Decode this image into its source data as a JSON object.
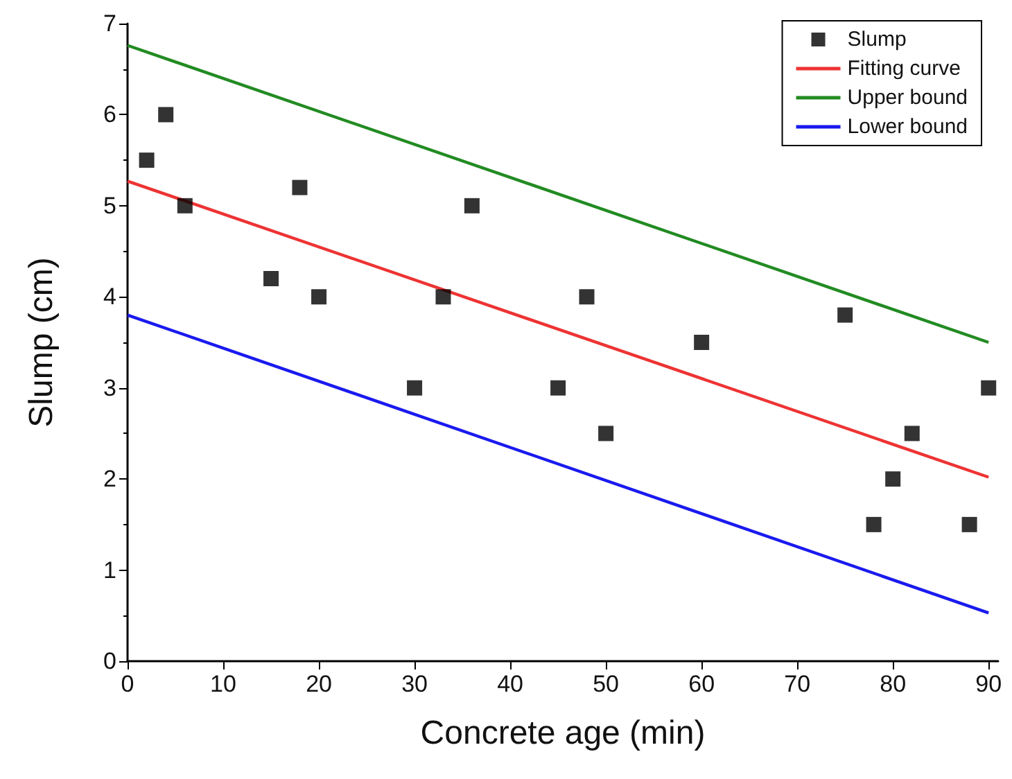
{
  "chart_data": {
    "type": "scatter",
    "xlabel": "Concrete age (min)",
    "ylabel": "Slump (cm)",
    "xlim": [
      0,
      91
    ],
    "xticks": [
      0,
      10,
      20,
      30,
      40,
      50,
      60,
      70,
      80,
      90
    ],
    "ylim": [
      0,
      7
    ],
    "yticks": [
      0,
      1,
      2,
      3,
      4,
      5,
      6,
      7
    ],
    "grid": false,
    "legend": "top right",
    "series": [
      {
        "name": "Slump",
        "marker": "square",
        "color": "#000000",
        "x": [
          2,
          4,
          6,
          15,
          18,
          20,
          30,
          33,
          36,
          45,
          48,
          50,
          60,
          75,
          78,
          80,
          82,
          88,
          90
        ],
        "values": [
          5.5,
          6,
          5,
          4.2,
          5.2,
          4,
          3,
          4,
          5,
          3,
          4,
          2.5,
          3.5,
          3.8,
          1.5,
          2,
          2.5,
          1.5,
          3
        ]
      },
      {
        "name": "Fitting curve",
        "type": "line",
        "marker": "none",
        "line_style": "solid",
        "color": "#ee3333",
        "x": [
          0,
          90
        ],
        "values": [
          5.27,
          2.02
        ]
      },
      {
        "name": "Upper bound",
        "type": "line",
        "marker": "none",
        "line_style": "solid",
        "color": "#228b22",
        "x": [
          0,
          90
        ],
        "values": [
          6.76,
          3.5
        ]
      },
      {
        "name": "Lower bound",
        "type": "line",
        "marker": "none",
        "line_style": "solid",
        "color": "#1a1aee",
        "x": [
          0,
          90
        ],
        "values": [
          3.8,
          0.53
        ]
      }
    ]
  }
}
